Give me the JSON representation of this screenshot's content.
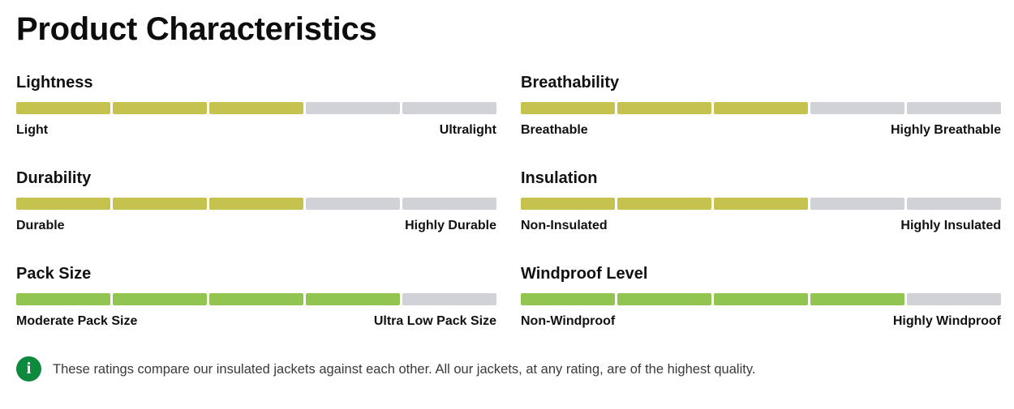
{
  "page_title": "Product Characteristics",
  "colors": {
    "olive_fill": "#c5c34d",
    "green_fill": "#92c54f",
    "empty": "#d1d2d7",
    "info_icon": "#0e8a3e"
  },
  "characteristics": [
    {
      "title": "Lightness",
      "low_label": "Light",
      "high_label": "Ultralight",
      "rating": 3,
      "max": 5,
      "fill_color": "#c5c34d"
    },
    {
      "title": "Breathability",
      "low_label": "Breathable",
      "high_label": "Highly Breathable",
      "rating": 3,
      "max": 5,
      "fill_color": "#c5c34d"
    },
    {
      "title": "Durability",
      "low_label": "Durable",
      "high_label": "Highly Durable",
      "rating": 3,
      "max": 5,
      "fill_color": "#c5c34d"
    },
    {
      "title": "Insulation",
      "low_label": "Non-Insulated",
      "high_label": "Highly Insulated",
      "rating": 3,
      "max": 5,
      "fill_color": "#c5c34d"
    },
    {
      "title": "Pack Size",
      "low_label": "Moderate Pack Size",
      "high_label": "Ultra Low Pack Size",
      "rating": 4,
      "max": 5,
      "fill_color": "#92c54f"
    },
    {
      "title": "Windproof Level",
      "low_label": "Non-Windproof",
      "high_label": "Highly Windproof",
      "rating": 4,
      "max": 5,
      "fill_color": "#92c54f"
    }
  ],
  "info": {
    "icon": "info-icon",
    "glyph": "i",
    "text": "These ratings compare our insulated jackets against each other. All our jackets, at any rating, are of the highest quality."
  }
}
